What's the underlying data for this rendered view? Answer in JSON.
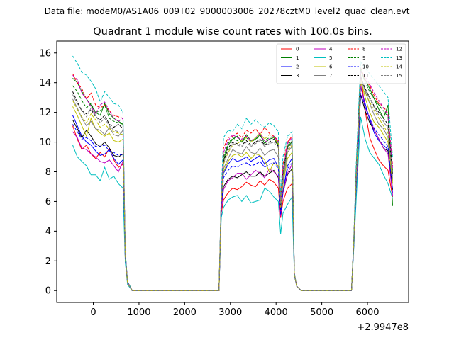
{
  "chart_data": {
    "type": "line",
    "suptitle": "Data file: modeM0/AS1A06_009T02_9000003006_20278cztM0_level2_quad_clean.evt",
    "title": "Quadrant 1 module wise count rates with 100.0s bins.",
    "xlabel": "",
    "ylabel": "",
    "x_offset_label": "+2.9947e8",
    "xlim": [
      -800,
      6900
    ],
    "ylim": [
      -0.8,
      16.8
    ],
    "xticks": [
      0,
      1000,
      2000,
      3000,
      4000,
      5000,
      6000
    ],
    "yticks": [
      0,
      2,
      4,
      6,
      8,
      10,
      12,
      14,
      16
    ],
    "grid": false,
    "legend_position": "top-right",
    "x": [
      -450,
      -350,
      -250,
      -150,
      -50,
      50,
      150,
      250,
      350,
      450,
      550,
      650,
      700,
      750,
      850,
      2750,
      2800,
      2850,
      2950,
      3050,
      3150,
      3250,
      3350,
      3450,
      3550,
      3650,
      3750,
      3850,
      3950,
      4050,
      4100,
      4150,
      4250,
      4350,
      4400,
      4450,
      4550,
      5650,
      5700,
      5750,
      5850,
      5950,
      6050,
      6150,
      6250,
      6350,
      6450,
      6550
    ],
    "series": [
      {
        "name": "0",
        "color": "#ff0000",
        "dash": "solid",
        "values": [
          11.1,
          10.2,
          9.5,
          9.8,
          9.2,
          8.9,
          9.3,
          9.0,
          9.6,
          8.8,
          8.3,
          8.5,
          2.0,
          0.5,
          0.0,
          0.0,
          5.2,
          6.1,
          6.6,
          6.9,
          6.8,
          7.0,
          7.3,
          7.1,
          7.0,
          7.4,
          7.1,
          7.5,
          7.3,
          6.9,
          4.9,
          6.0,
          6.9,
          7.2,
          1.1,
          0.3,
          0.0,
          0.0,
          3.0,
          6.2,
          14.6,
          12.1,
          10.3,
          9.5,
          8.8,
          8.4,
          8.1,
          6.3
        ]
      },
      {
        "name": "1",
        "color": "#008000",
        "dash": "solid",
        "values": [
          14.3,
          14.0,
          13.4,
          12.9,
          12.5,
          12.0,
          11.8,
          12.6,
          11.9,
          11.6,
          11.4,
          11.2,
          2.5,
          0.6,
          0.0,
          0.0,
          6.3,
          8.8,
          9.8,
          10.2,
          10.4,
          10.0,
          10.5,
          10.1,
          10.2,
          10.5,
          9.9,
          10.2,
          10.3,
          9.8,
          5.9,
          7.8,
          9.7,
          10.0,
          1.1,
          0.3,
          0.0,
          0.0,
          3.3,
          7.7,
          14.8,
          14.2,
          13.6,
          12.9,
          12.2,
          11.6,
          12.5,
          5.7
        ]
      },
      {
        "name": "2",
        "color": "#0000ff",
        "dash": "solid",
        "values": [
          11.8,
          11.1,
          10.4,
          10.0,
          9.8,
          9.4,
          9.1,
          9.2,
          9.5,
          8.9,
          8.5,
          8.8,
          2.1,
          0.5,
          0.0,
          0.0,
          5.6,
          7.9,
          8.5,
          8.9,
          8.7,
          8.8,
          9.0,
          8.7,
          8.9,
          9.1,
          8.5,
          8.8,
          8.9,
          8.3,
          5.2,
          6.7,
          8.4,
          8.9,
          1.1,
          0.3,
          0.0,
          0.0,
          3.1,
          7.0,
          13.7,
          12.6,
          11.5,
          10.6,
          10.1,
          9.8,
          9.5,
          6.6
        ]
      },
      {
        "name": "3",
        "color": "#000000",
        "dash": "solid",
        "values": [
          11.5,
          10.9,
          10.3,
          10.8,
          10.4,
          9.9,
          9.7,
          10.0,
          9.6,
          9.1,
          9.0,
          9.2,
          2.2,
          0.5,
          0.0,
          0.0,
          5.4,
          7.0,
          7.5,
          7.7,
          7.6,
          7.8,
          8.0,
          7.7,
          7.7,
          8.0,
          7.7,
          7.9,
          8.1,
          7.6,
          5.3,
          6.6,
          7.8,
          8.2,
          1.1,
          0.3,
          0.0,
          0.0,
          3.1,
          6.6,
          13.2,
          12.1,
          11.3,
          10.8,
          10.2,
          9.6,
          9.4,
          6.8
        ]
      },
      {
        "name": "4",
        "color": "#bf00bf",
        "dash": "solid",
        "values": [
          10.7,
          10.3,
          9.6,
          9.5,
          9.2,
          9.0,
          8.7,
          8.6,
          8.8,
          8.4,
          8.0,
          8.7,
          2.1,
          0.5,
          0.0,
          0.0,
          5.3,
          6.8,
          7.4,
          7.6,
          7.9,
          7.9,
          7.5,
          7.8,
          8.1,
          7.9,
          7.6,
          8.2,
          8.0,
          7.7,
          5.0,
          6.6,
          7.9,
          8.5,
          1.0,
          0.3,
          0.0,
          0.0,
          3.1,
          6.4,
          13.9,
          12.3,
          11.6,
          10.8,
          10.2,
          9.6,
          9.2,
          6.4
        ]
      },
      {
        "name": "5",
        "color": "#00bfbf",
        "dash": "solid",
        "values": [
          9.8,
          9.0,
          8.7,
          8.4,
          7.8,
          7.8,
          7.4,
          8.3,
          7.5,
          7.7,
          7.2,
          6.9,
          1.9,
          0.4,
          0.0,
          0.0,
          4.9,
          5.6,
          6.1,
          6.3,
          6.4,
          6.0,
          6.4,
          5.9,
          6.0,
          6.1,
          6.9,
          6.7,
          6.3,
          6.0,
          3.8,
          5.2,
          5.8,
          6.3,
          1.0,
          0.3,
          0.0,
          0.0,
          2.8,
          5.9,
          11.7,
          10.2,
          9.3,
          8.9,
          8.5,
          7.8,
          7.2,
          6.2
        ]
      },
      {
        "name": "6",
        "color": "#bfbf00",
        "dash": "solid",
        "values": [
          12.4,
          11.8,
          11.1,
          10.4,
          11.6,
          10.9,
          10.6,
          10.4,
          10.6,
          10.1,
          10.0,
          10.2,
          2.3,
          0.5,
          0.0,
          0.0,
          5.8,
          8.0,
          8.7,
          9.1,
          9.2,
          9.0,
          9.3,
          8.9,
          9.2,
          9.1,
          8.8,
          8.0,
          8.6,
          8.4,
          5.6,
          7.1,
          8.9,
          9.3,
          1.1,
          0.3,
          0.0,
          0.0,
          3.2,
          7.0,
          14.3,
          13.0,
          12.0,
          11.3,
          11.0,
          10.5,
          10.0,
          7.2
        ]
      },
      {
        "name": "7",
        "color": "#808080",
        "dash": "solid",
        "values": [
          12.9,
          12.3,
          11.6,
          11.1,
          11.4,
          10.9,
          10.8,
          10.5,
          11.0,
          10.5,
          10.4,
          10.8,
          2.4,
          0.5,
          0.0,
          0.0,
          5.9,
          8.2,
          8.9,
          9.5,
          9.3,
          9.2,
          9.7,
          9.3,
          9.2,
          9.6,
          9.1,
          9.4,
          9.5,
          9.0,
          5.8,
          7.3,
          9.3,
          9.7,
          1.1,
          0.3,
          0.0,
          0.0,
          3.2,
          7.2,
          14.5,
          13.4,
          12.6,
          11.8,
          11.2,
          10.9,
          10.3,
          7.5
        ]
      },
      {
        "name": "8",
        "color": "#ff0000",
        "dash": "dashed",
        "values": [
          14.6,
          14.0,
          13.6,
          12.9,
          13.3,
          12.5,
          12.3,
          12.5,
          12.1,
          11.8,
          11.7,
          11.6,
          2.6,
          0.6,
          0.0,
          0.0,
          6.4,
          9.6,
          10.3,
          10.4,
          10.6,
          10.3,
          10.8,
          10.6,
          10.9,
          10.5,
          11.0,
          10.6,
          10.4,
          10.1,
          6.2,
          8.5,
          10.0,
          10.4,
          1.2,
          0.3,
          0.0,
          0.0,
          3.4,
          7.9,
          15.0,
          14.2,
          13.8,
          13.1,
          12.6,
          12.4,
          11.9,
          8.4
        ]
      },
      {
        "name": "9",
        "color": "#008000",
        "dash": "dashed",
        "values": [
          13.8,
          13.4,
          12.8,
          12.3,
          12.6,
          12.0,
          12.1,
          12.5,
          11.6,
          11.4,
          11.3,
          11.2,
          2.5,
          0.6,
          0.0,
          0.0,
          6.2,
          9.0,
          9.9,
          10.3,
          10.1,
          10.0,
          10.3,
          10.0,
          10.2,
          10.4,
          10.1,
          10.3,
          10.4,
          9.9,
          5.9,
          7.9,
          9.8,
          10.1,
          1.1,
          0.3,
          0.0,
          0.0,
          3.3,
          7.7,
          14.9,
          14.0,
          13.4,
          12.9,
          12.5,
          12.1,
          11.7,
          8.0
        ]
      },
      {
        "name": "10",
        "color": "#0000ff",
        "dash": "dashed",
        "values": [
          11.2,
          10.7,
          10.2,
          10.3,
          10.1,
          9.7,
          9.7,
          9.8,
          9.4,
          9.3,
          9.1,
          9.2,
          2.2,
          0.5,
          0.0,
          0.0,
          5.5,
          7.6,
          8.1,
          8.4,
          8.3,
          8.5,
          8.6,
          8.4,
          8.5,
          8.7,
          8.3,
          8.5,
          8.6,
          8.2,
          5.1,
          6.7,
          8.2,
          8.6,
          1.1,
          0.3,
          0.0,
          0.0,
          3.0,
          6.8,
          13.3,
          12.4,
          11.6,
          10.9,
          10.5,
          10.1,
          9.7,
          6.8
        ]
      },
      {
        "name": "11",
        "color": "#000000",
        "dash": "dashed",
        "values": [
          13.4,
          12.7,
          12.1,
          11.9,
          12.2,
          11.7,
          11.5,
          11.8,
          11.2,
          11.0,
          11.2,
          10.9,
          2.4,
          0.6,
          0.0,
          0.0,
          6.1,
          8.7,
          9.6,
          10.0,
          9.9,
          9.8,
          10.1,
          9.8,
          10.0,
          10.2,
          9.8,
          10.0,
          10.2,
          9.7,
          5.8,
          7.8,
          9.6,
          10.0,
          1.1,
          0.3,
          0.0,
          0.0,
          3.3,
          7.5,
          14.4,
          13.6,
          13.0,
          12.4,
          12.0,
          11.6,
          11.2,
          7.8
        ]
      },
      {
        "name": "12",
        "color": "#bf00bf",
        "dash": "dashed",
        "values": [
          14.5,
          14.2,
          13.3,
          12.9,
          12.4,
          11.9,
          12.5,
          12.7,
          12.1,
          11.6,
          11.4,
          11.6,
          2.6,
          0.6,
          0.0,
          0.0,
          6.3,
          9.3,
          10.1,
          10.5,
          10.3,
          10.2,
          10.4,
          10.1,
          10.3,
          10.6,
          10.0,
          10.2,
          10.4,
          10.0,
          6.0,
          8.2,
          9.9,
          10.3,
          1.2,
          0.3,
          0.0,
          0.0,
          3.4,
          7.8,
          14.8,
          14.4,
          13.9,
          13.3,
          12.8,
          12.3,
          11.8,
          8.2
        ]
      },
      {
        "name": "13",
        "color": "#00bfbf",
        "dash": "dashed",
        "values": [
          15.8,
          15.3,
          14.7,
          14.5,
          14.1,
          13.6,
          12.7,
          13.4,
          13.0,
          12.6,
          12.5,
          12.0,
          2.7,
          0.6,
          0.0,
          0.0,
          6.6,
          10.3,
          10.8,
          10.7,
          11.2,
          10.9,
          11.6,
          11.2,
          11.5,
          11.2,
          11.0,
          11.3,
          11.1,
          10.7,
          6.4,
          9.0,
          10.4,
          10.7,
          1.2,
          0.3,
          0.0,
          0.0,
          3.5,
          8.3,
          15.4,
          15.0,
          14.6,
          14.2,
          13.8,
          13.4,
          13.0,
          8.9
        ]
      },
      {
        "name": "14",
        "color": "#bfbf00",
        "dash": "dashed",
        "values": [
          12.8,
          12.2,
          11.7,
          11.3,
          11.9,
          11.5,
          11.0,
          11.2,
          10.9,
          10.7,
          10.6,
          10.5,
          2.3,
          0.5,
          0.0,
          0.0,
          5.9,
          8.5,
          9.3,
          9.8,
          9.9,
          10.1,
          10.3,
          10.0,
          10.3,
          10.6,
          10.2,
          10.5,
          10.3,
          9.9,
          5.9,
          7.6,
          9.4,
          9.8,
          1.1,
          0.3,
          0.0,
          0.0,
          3.2,
          7.3,
          14.0,
          13.3,
          12.7,
          12.1,
          11.6,
          11.1,
          10.6,
          7.4
        ]
      },
      {
        "name": "15",
        "color": "#808080",
        "dash": "dashed",
        "values": [
          13.2,
          12.6,
          12.1,
          11.7,
          12.3,
          11.8,
          11.3,
          11.6,
          11.1,
          10.8,
          10.7,
          10.6,
          2.4,
          0.5,
          0.0,
          0.0,
          6.0,
          8.6,
          9.4,
          9.9,
          9.8,
          9.7,
          10.0,
          9.7,
          9.9,
          10.1,
          9.7,
          9.9,
          10.0,
          9.6,
          5.8,
          7.6,
          9.5,
          9.9,
          1.1,
          0.3,
          0.0,
          0.0,
          3.3,
          7.4,
          14.2,
          13.5,
          12.9,
          12.3,
          11.8,
          11.4,
          10.9,
          7.6
        ]
      }
    ]
  }
}
